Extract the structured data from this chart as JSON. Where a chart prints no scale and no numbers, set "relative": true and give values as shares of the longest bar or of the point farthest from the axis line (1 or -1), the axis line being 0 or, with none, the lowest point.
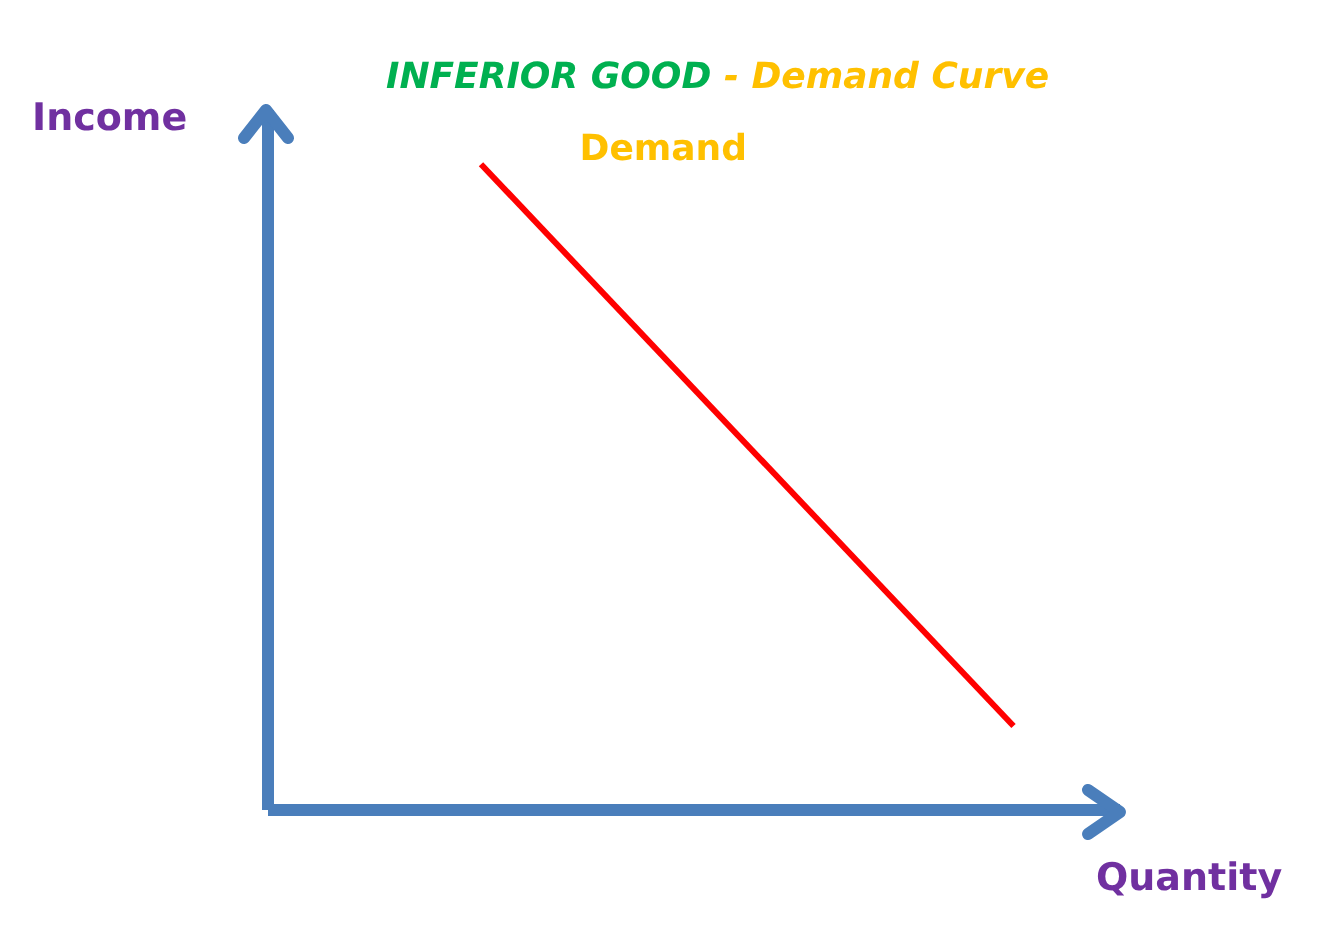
{
  "chart_data": {
    "type": "line",
    "title": "INFERIOR GOOD",
    "subtitle": "- Demand Curve",
    "xlabel": "Quantity",
    "ylabel": "Income",
    "relative": true,
    "marker": "none",
    "legend": false,
    "grid": false,
    "categories": [
      null,
      null,
      null,
      null,
      null,
      null,
      null,
      null,
      null
    ],
    "series": [
      {
        "name": "Demand",
        "color": "#ff0000",
        "values": [
          null,
          null,
          1,
          null,
          null,
          null,
          null,
          0.13,
          null
        ]
      }
    ]
  }
}
